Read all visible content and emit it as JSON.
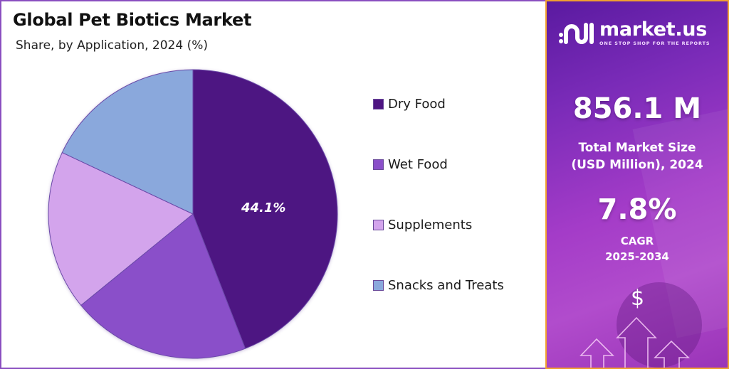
{
  "header": {
    "title": "Global Pet Biotics Market",
    "subtitle": "Share, by Application, 2024 (%)"
  },
  "chart_data": {
    "type": "pie",
    "title": "Global Pet Biotics Market",
    "subtitle": "Share, by Application, 2024 (%)",
    "categories": [
      "Dry Food",
      "Wet Food",
      "Supplements",
      "Snacks and Treats"
    ],
    "values": [
      44.1,
      20.0,
      17.9,
      18.0
    ],
    "colors": [
      "#4e1582",
      "#8a4fc9",
      "#d3a4ec",
      "#8aa8dc"
    ],
    "data_labels": [
      {
        "category": "Dry Food",
        "text": "44.1%"
      }
    ],
    "start_angle": "12 o'clock, clockwise",
    "legend_position": "right"
  },
  "pie": {
    "highlight_label": "44.1%"
  },
  "legend": {
    "items": [
      {
        "label": "Dry Food",
        "color": "#4e1582"
      },
      {
        "label": "Wet Food",
        "color": "#8a4fc9"
      },
      {
        "label": "Supplements",
        "color": "#d3a4ec"
      },
      {
        "label": "Snacks and Treats",
        "color": "#8aa8dc"
      }
    ]
  },
  "side_panel": {
    "brand": {
      "name": "market.us",
      "tagline": "ONE STOP SHOP FOR THE REPORTS"
    },
    "market_size": {
      "value": "856.1 M",
      "label_line1": "Total Market Size",
      "label_line2": "(USD Million), 2024"
    },
    "cagr": {
      "value": "7.8%",
      "label_line1": "CAGR",
      "label_line2": "2025-2034"
    },
    "currency_symbol": "$",
    "colors": {
      "border": "#f0a030",
      "bg_start": "#5a1aa0",
      "bg_end": "#b14ccc"
    }
  }
}
